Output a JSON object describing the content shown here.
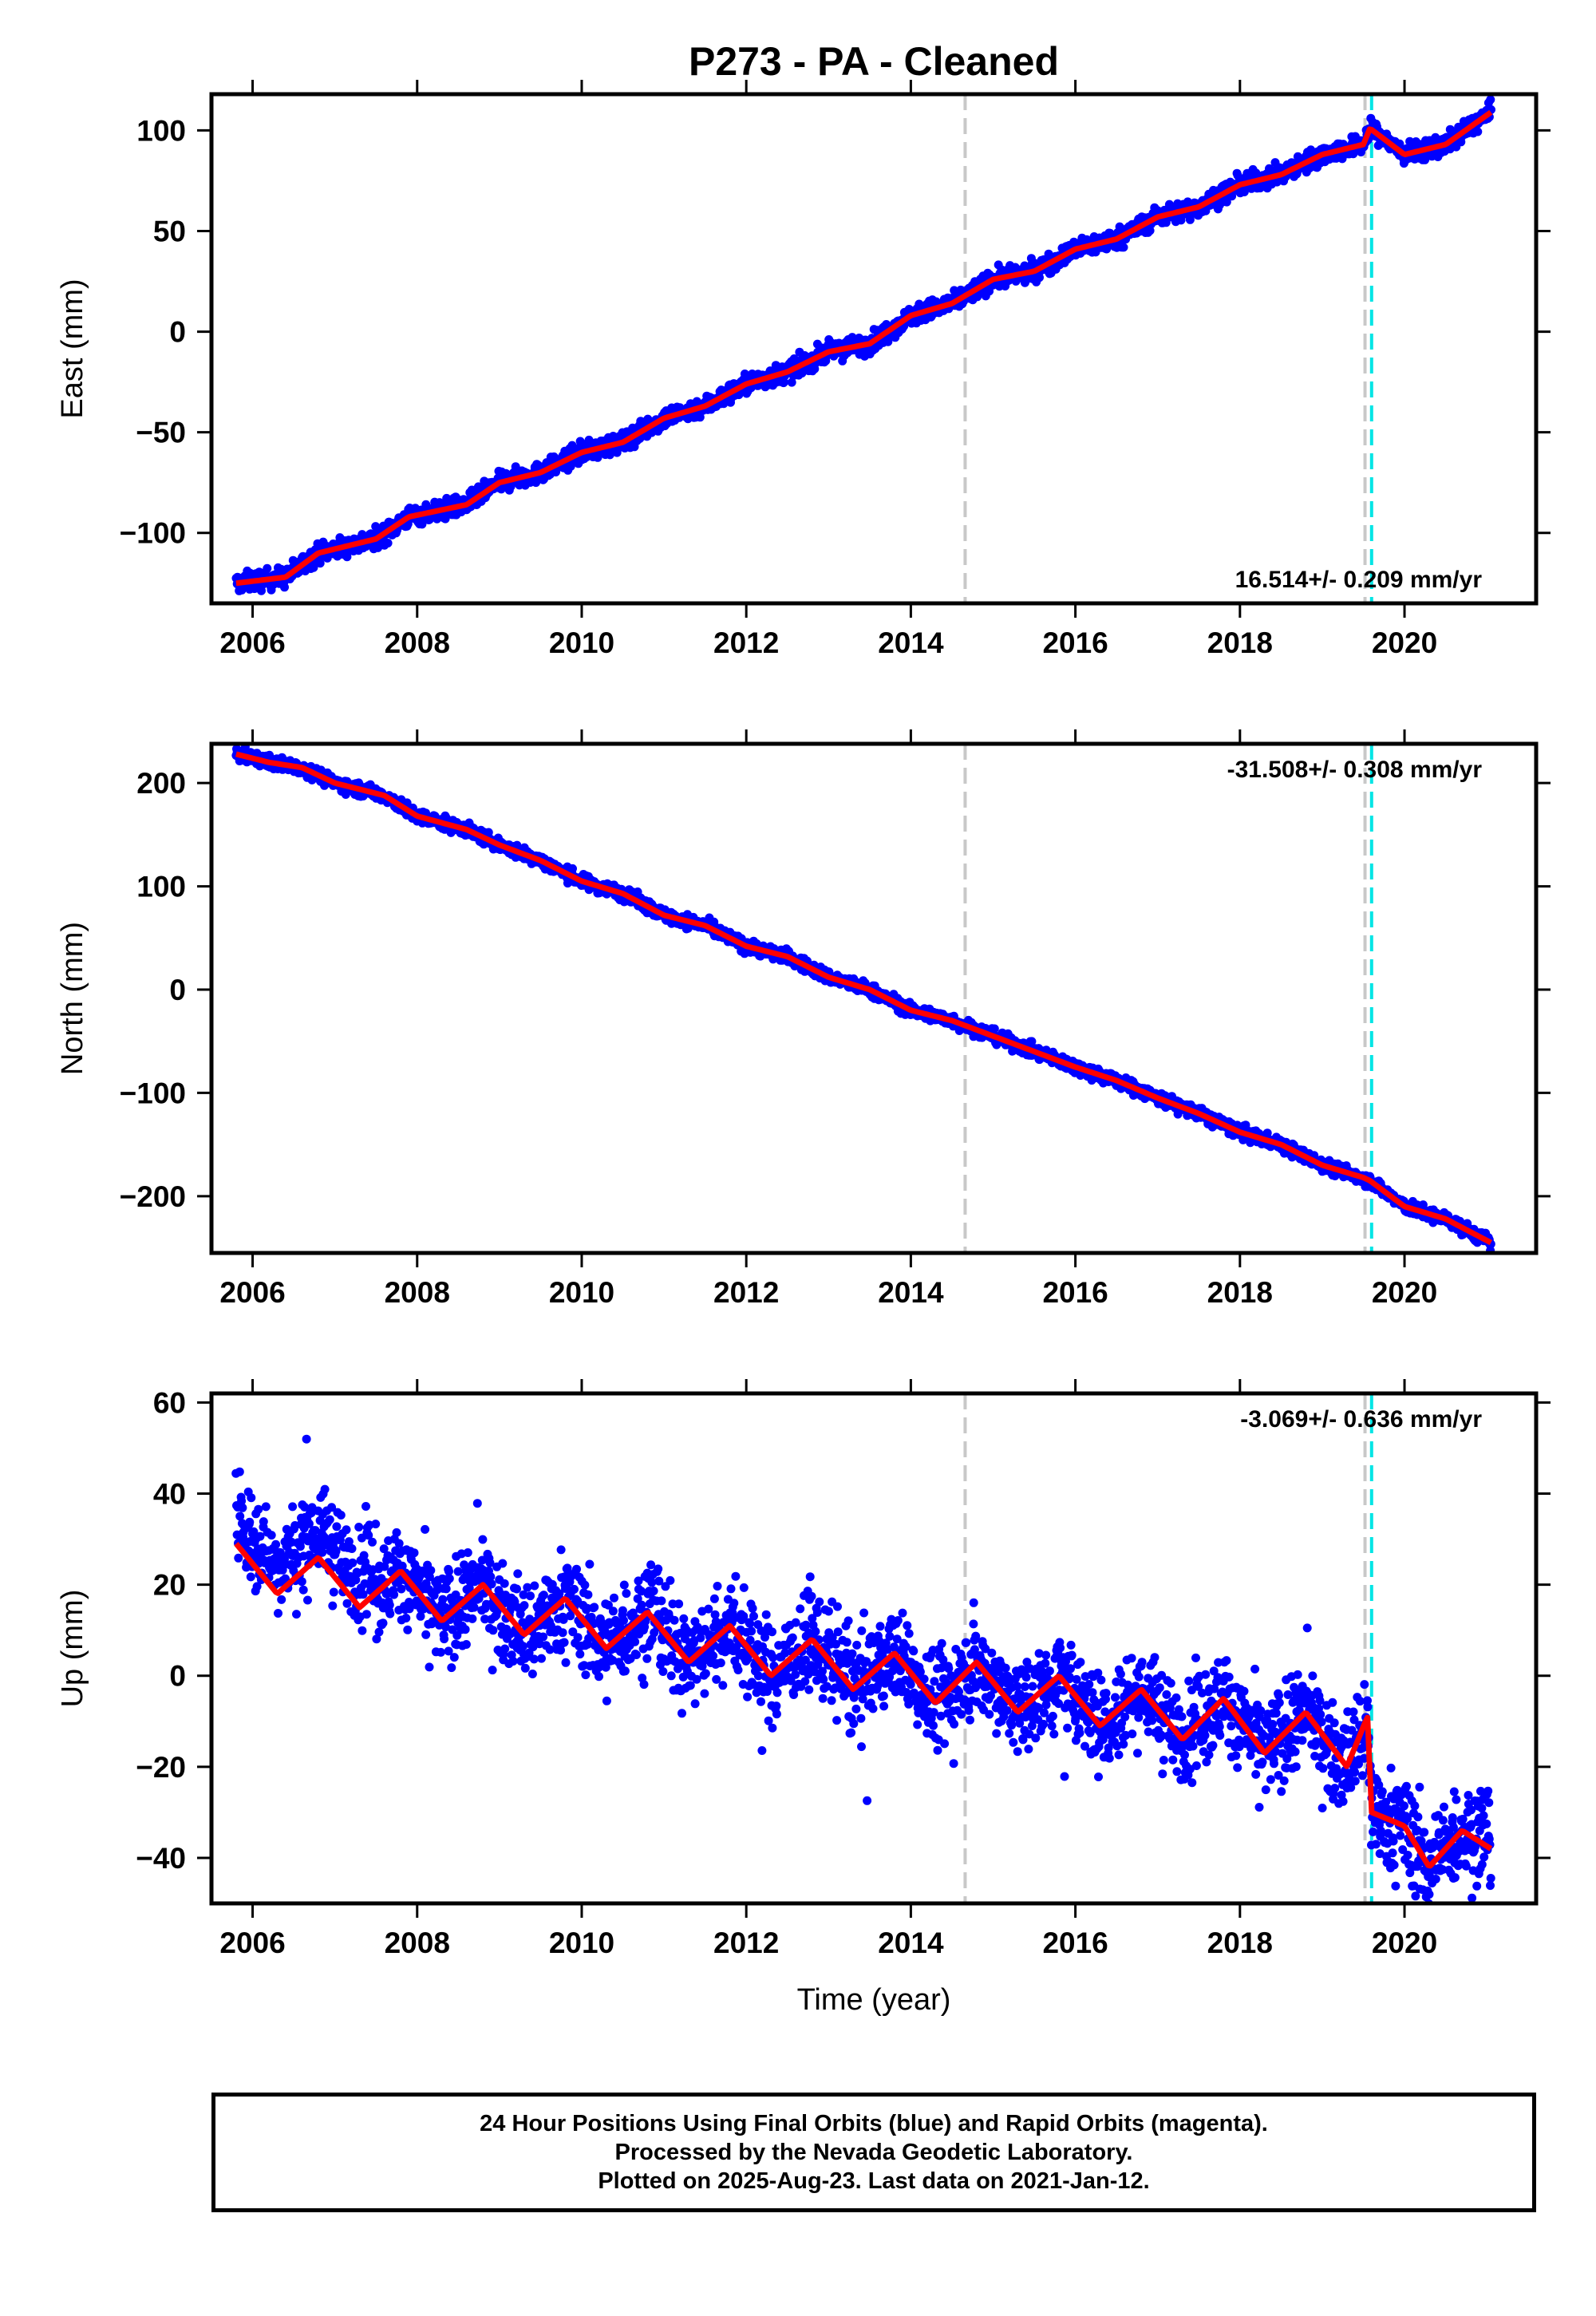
{
  "title": "P273  - PA - Cleaned",
  "xlabel": "Time (year)",
  "footer": {
    "line1": "24 Hour Positions Using Final Orbits (blue) and Rapid Orbits (magenta).",
    "line2": "Processed by the Nevada Geodetic Laboratory.",
    "line3": "Plotted on 2025-Aug-23. Last data on 2021-Jan-12."
  },
  "colors": {
    "data": "#0000ff",
    "model": "#ff0000",
    "step_gray": "#c8c8c8",
    "step_cyan": "#00e5e5",
    "frame": "#000000"
  },
  "chart_data": [
    {
      "type": "scatter",
      "component": "east",
      "ylabel": "East (mm)",
      "rate": "16.514+/- 0.209 mm/yr",
      "xlim": [
        2005.5,
        2021.6
      ],
      "ylim": [
        -135,
        118
      ],
      "xticks": [
        2006,
        2008,
        2010,
        2012,
        2014,
        2016,
        2018,
        2020
      ],
      "yticks": [
        -100,
        -50,
        0,
        50,
        100
      ],
      "steps": [
        {
          "x": 2014.66,
          "color": "gray"
        },
        {
          "x": 2019.52,
          "color": "gray"
        },
        {
          "x": 2019.6,
          "color": "cyan"
        }
      ],
      "series": [
        {
          "x": [
            2005.8,
            2006.4,
            2006.8,
            2007.5,
            2007.9,
            2008.6,
            2009.0,
            2009.5,
            2010.0,
            2010.5,
            2011.0,
            2011.5,
            2012.0,
            2012.5,
            2013.0,
            2013.5,
            2014.0,
            2014.5,
            2015.0,
            2015.5,
            2016.0,
            2016.5,
            2017.0,
            2017.5,
            2018.0,
            2018.5,
            2019.0,
            2019.5,
            2019.58,
            2020.0,
            2020.5,
            2021.05
          ],
          "y": [
            -125,
            -122,
            -110,
            -103,
            -92,
            -86,
            -75,
            -70,
            -60,
            -55,
            -43,
            -37,
            -26,
            -20,
            -10,
            -6,
            8,
            14,
            26,
            30,
            41,
            46,
            57,
            62,
            73,
            78,
            88,
            93,
            101,
            88,
            93,
            109
          ]
        }
      ]
    },
    {
      "type": "scatter",
      "component": "north",
      "ylabel": "North (mm)",
      "rate": "-31.508+/- 0.308 mm/yr",
      "xlim": [
        2005.5,
        2021.6
      ],
      "ylim": [
        -255,
        238
      ],
      "xticks": [
        2006,
        2008,
        2010,
        2012,
        2014,
        2016,
        2018,
        2020
      ],
      "yticks": [
        -200,
        -100,
        0,
        100,
        200
      ],
      "steps": [
        {
          "x": 2014.66,
          "color": "gray"
        },
        {
          "x": 2019.52,
          "color": "gray"
        },
        {
          "x": 2019.6,
          "color": "cyan"
        }
      ],
      "series": [
        {
          "x": [
            2005.8,
            2006.2,
            2006.6,
            2007.0,
            2007.6,
            2008.0,
            2008.6,
            2009.0,
            2009.5,
            2010.0,
            2010.5,
            2011.0,
            2011.5,
            2012.0,
            2012.5,
            2013.0,
            2013.5,
            2014.0,
            2014.5,
            2015.0,
            2015.5,
            2016.0,
            2016.5,
            2017.0,
            2017.5,
            2018.0,
            2018.5,
            2019.0,
            2019.5,
            2019.58,
            2020.0,
            2020.5,
            2021.05
          ],
          "y": [
            228,
            220,
            215,
            200,
            188,
            168,
            155,
            140,
            125,
            105,
            93,
            72,
            62,
            42,
            32,
            12,
            0,
            -20,
            -30,
            -45,
            -60,
            -75,
            -88,
            -105,
            -120,
            -138,
            -150,
            -170,
            -182,
            -185,
            -210,
            -222,
            -245
          ]
        }
      ]
    },
    {
      "type": "scatter",
      "component": "up",
      "ylabel": "Up (mm)",
      "rate": "-3.069+/- 0.636 mm/yr",
      "xlim": [
        2005.5,
        2021.6
      ],
      "ylim": [
        -50,
        62
      ],
      "xticks": [
        2006,
        2008,
        2010,
        2012,
        2014,
        2016,
        2018,
        2020
      ],
      "yticks": [
        -40,
        -20,
        0,
        20,
        40,
        60
      ],
      "steps": [
        {
          "x": 2014.66,
          "color": "gray"
        },
        {
          "x": 2019.52,
          "color": "gray"
        },
        {
          "x": 2019.6,
          "color": "cyan"
        }
      ],
      "series": [
        {
          "x": [
            2005.8,
            2006.3,
            2006.8,
            2007.3,
            2007.8,
            2008.3,
            2008.8,
            2009.3,
            2009.8,
            2010.3,
            2010.8,
            2011.3,
            2011.8,
            2012.3,
            2012.8,
            2013.3,
            2013.8,
            2014.3,
            2014.8,
            2015.3,
            2015.8,
            2016.3,
            2016.8,
            2017.3,
            2017.8,
            2018.3,
            2018.8,
            2019.3,
            2019.55,
            2019.6,
            2020.0,
            2020.3,
            2020.7,
            2021.05
          ],
          "y": [
            29,
            18,
            26,
            15,
            23,
            12,
            20,
            9,
            17,
            6,
            14,
            3,
            11,
            0,
            8,
            -3,
            5,
            -6,
            3,
            -8,
            0,
            -11,
            -3,
            -14,
            -5,
            -17,
            -8,
            -20,
            -9,
            -30,
            -33,
            -42,
            -34,
            -38
          ]
        }
      ]
    }
  ]
}
